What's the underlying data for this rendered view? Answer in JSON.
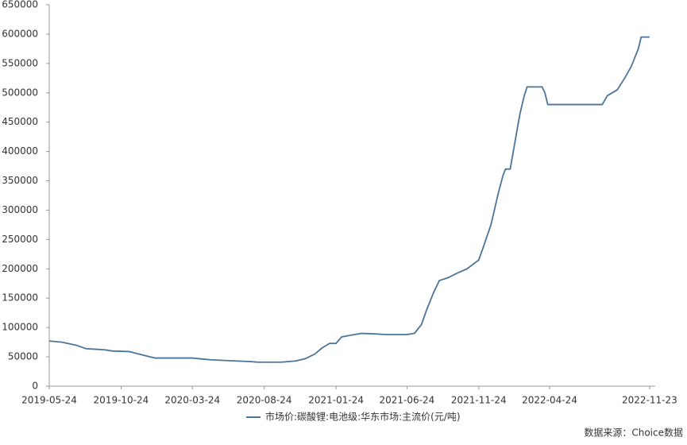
{
  "chart_data": {
    "type": "line",
    "x": [
      "2019-05-24",
      "2019-06-20",
      "2019-07-20",
      "2019-08-10",
      "2019-09-20",
      "2019-10-05",
      "2019-11-10",
      "2019-12-10",
      "2019-12-25",
      "2020-01-05",
      "2020-03-24",
      "2020-05-01",
      "2020-06-24",
      "2020-07-25",
      "2020-08-10",
      "2020-09-30",
      "2020-10-30",
      "2020-11-20",
      "2020-12-10",
      "2020-12-25",
      "2021-01-10",
      "2021-01-24",
      "2021-02-05",
      "2021-02-25",
      "2021-03-20",
      "2021-04-20",
      "2021-05-10",
      "2021-06-24",
      "2021-07-10",
      "2021-07-25",
      "2021-08-05",
      "2021-08-20",
      "2021-09-01",
      "2021-09-20",
      "2021-10-10",
      "2021-10-30",
      "2021-11-24",
      "2021-12-05",
      "2021-12-20",
      "2022-01-05",
      "2022-01-15",
      "2022-01-20",
      "2022-01-30",
      "2022-02-10",
      "2022-02-20",
      "2022-03-01",
      "2022-03-07",
      "2022-04-08",
      "2022-04-14",
      "2022-04-20",
      "2022-08-14",
      "2022-08-25",
      "2022-09-15",
      "2022-10-01",
      "2022-10-15",
      "2022-10-30",
      "2022-11-05",
      "2022-11-23"
    ],
    "series": [
      {
        "name": "市场价:碳酸锂:电池级:华东市场:主流价(元/吨)",
        "color": "#4a7499",
        "values": [
          77000,
          75000,
          70000,
          64000,
          62000,
          60000,
          59000,
          53000,
          50000,
          48000,
          48000,
          45000,
          43000,
          42000,
          41000,
          41000,
          43000,
          47000,
          55000,
          65000,
          73000,
          73000,
          84000,
          87000,
          90000,
          89000,
          88000,
          88000,
          90000,
          105000,
          130000,
          160000,
          180000,
          185000,
          193000,
          200000,
          215000,
          240000,
          275000,
          330000,
          360000,
          370000,
          370000,
          420000,
          465000,
          495000,
          510000,
          510000,
          500000,
          480000,
          480000,
          495000,
          505000,
          525000,
          545000,
          575000,
          595000,
          595000
        ]
      }
    ],
    "xlim": [
      "2019-05-24",
      "2022-12-05"
    ],
    "xticks": [
      "2019-05-24",
      "2019-10-24",
      "2020-03-24",
      "2020-08-24",
      "2021-01-24",
      "2021-06-24",
      "2021-11-24",
      "2022-04-24",
      "2022-11-23"
    ],
    "ylim": [
      0,
      650000
    ],
    "yticks": [
      0,
      50000,
      100000,
      150000,
      200000,
      250000,
      300000,
      350000,
      400000,
      450000,
      500000,
      550000,
      600000,
      650000
    ],
    "grid": false,
    "source": "数据来源：Choice数据"
  }
}
